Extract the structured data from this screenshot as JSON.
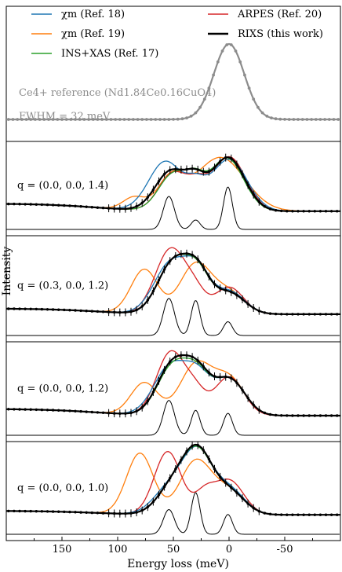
{
  "chart_data": {
    "type": "line",
    "xlabel": "Energy loss (meV)",
    "ylabel": "Intensity",
    "xlim": [
      200,
      -100
    ],
    "xticks": [
      "150",
      "100",
      "50",
      "0",
      "-50"
    ],
    "xtick_values": [
      150,
      100,
      50,
      0,
      -50
    ],
    "legend": {
      "placement": "top",
      "entries": [
        {
          "label": "χm (Ref. 18)",
          "color": "#1f77b4"
        },
        {
          "label": "χm (Ref. 19)",
          "color": "#ff7f0e"
        },
        {
          "label": "INS+XAS (Ref. 17)",
          "color": "#2ca02c"
        },
        {
          "label": "ARPES (Ref. 20)",
          "color": "#d62728"
        },
        {
          "label": "RIXS (this work)",
          "color": "#000000"
        }
      ]
    },
    "reference": {
      "label_line1": "Ce4+ reference (Nd1.84Ce0.16CuO4)",
      "label_line2": "FWHM = 32 meV",
      "color": "#8c8c8c",
      "peak_energy": 0,
      "fwhm": 32
    },
    "panels": [
      {
        "label": "q = (0.0, 0.0, 1.4)",
        "elastic_tail_left": 0.12,
        "peaks": {
          "rixs": [
            [
              52,
              0.63,
              14
            ],
            [
              30,
              0.35,
              9
            ],
            [
              1,
              0.85,
              15
            ]
          ],
          "chi18": [
            [
              57,
              0.78,
              15
            ],
            [
              30,
              0.3,
              9
            ],
            [
              0,
              0.82,
              16
            ]
          ],
          "chi19": [
            [
              52,
              0.5,
              12
            ],
            [
              8,
              0.85,
              22
            ],
            [
              85,
              0.2,
              10
            ]
          ],
          "ins": [
            [
              50,
              0.58,
              13
            ],
            [
              30,
              0.35,
              9
            ],
            [
              2,
              0.84,
              15
            ]
          ],
          "arpes": [
            [
              50,
              0.6,
              13
            ],
            [
              28,
              0.3,
              9
            ],
            [
              0,
              0.86,
              15
            ]
          ]
        },
        "markers": [
          [
            54,
            0.35,
            5
          ],
          [
            30,
            0.1,
            4
          ],
          [
            1,
            0.45,
            4
          ]
        ]
      },
      {
        "label": "q = (0.3, 0.0, 1.2)",
        "elastic_tail_left": 0.08,
        "peaks": {
          "rixs": [
            [
              50,
              0.72,
              14
            ],
            [
              28,
              0.52,
              11
            ],
            [
              0,
              0.3,
              14
            ]
          ],
          "chi18": [
            [
              52,
              0.72,
              15
            ],
            [
              28,
              0.52,
              11
            ],
            [
              0,
              0.32,
              14
            ]
          ],
          "chi19": [
            [
              76,
              0.62,
              12
            ],
            [
              30,
              0.7,
              14
            ],
            [
              0,
              0.3,
              14
            ]
          ],
          "ins": [
            [
              50,
              0.72,
              14
            ],
            [
              28,
              0.5,
              11
            ],
            [
              0,
              0.3,
              14
            ]
          ],
          "arpes": [
            [
              52,
              0.92,
              14
            ],
            [
              30,
              0.22,
              9
            ],
            [
              0,
              0.38,
              13
            ]
          ]
        },
        "markers": [
          [
            54,
            0.35,
            5
          ],
          [
            30,
            0.33,
            4
          ],
          [
            1,
            0.13,
            4
          ]
        ]
      },
      {
        "label": "q = (0.0, 0.0, 1.2)",
        "elastic_tail_left": 0.1,
        "peaks": {
          "rixs": [
            [
              50,
              0.78,
              14
            ],
            [
              28,
              0.52,
              11
            ],
            [
              0,
              0.55,
              14
            ]
          ],
          "chi18": [
            [
              52,
              0.75,
              15
            ],
            [
              28,
              0.48,
              11
            ],
            [
              0,
              0.55,
              14
            ]
          ],
          "chi19": [
            [
              76,
              0.48,
              12
            ],
            [
              30,
              0.75,
              14
            ],
            [
              0,
              0.55,
              14
            ]
          ],
          "ins": [
            [
              50,
              0.74,
              14
            ],
            [
              28,
              0.5,
              11
            ],
            [
              0,
              0.55,
              14
            ]
          ],
          "arpes": [
            [
              52,
              0.95,
              13
            ],
            [
              30,
              0.28,
              9
            ],
            [
              0,
              0.58,
              13
            ]
          ]
        },
        "markers": [
          [
            54,
            0.35,
            5
          ],
          [
            30,
            0.25,
            4
          ],
          [
            1,
            0.22,
            4
          ]
        ]
      },
      {
        "label": "q = (0.0, 0.0, 1.0)",
        "elastic_tail_left": 0.06,
        "peaks": {
          "rixs": [
            [
              50,
              0.42,
              14
            ],
            [
              28,
              0.88,
              13
            ],
            [
              0,
              0.35,
              14
            ]
          ],
          "chi18": [
            [
              52,
              0.42,
              15
            ],
            [
              28,
              0.86,
              13
            ],
            [
              0,
              0.38,
              14
            ]
          ],
          "chi19": [
            [
              80,
              0.92,
              12
            ],
            [
              30,
              0.8,
              14
            ],
            [
              0,
              0.35,
              14
            ]
          ],
          "ins": [
            [
              50,
              0.42,
              14
            ],
            [
              28,
              0.86,
              13
            ],
            [
              0,
              0.35,
              14
            ]
          ],
          "arpes": [
            [
              55,
              0.95,
              12
            ],
            [
              22,
              0.3,
              9
            ],
            [
              0,
              0.52,
              13
            ]
          ]
        },
        "markers": [
          [
            54,
            0.25,
            5
          ],
          [
            30,
            0.42,
            4
          ],
          [
            1,
            0.2,
            4
          ]
        ]
      }
    ]
  }
}
